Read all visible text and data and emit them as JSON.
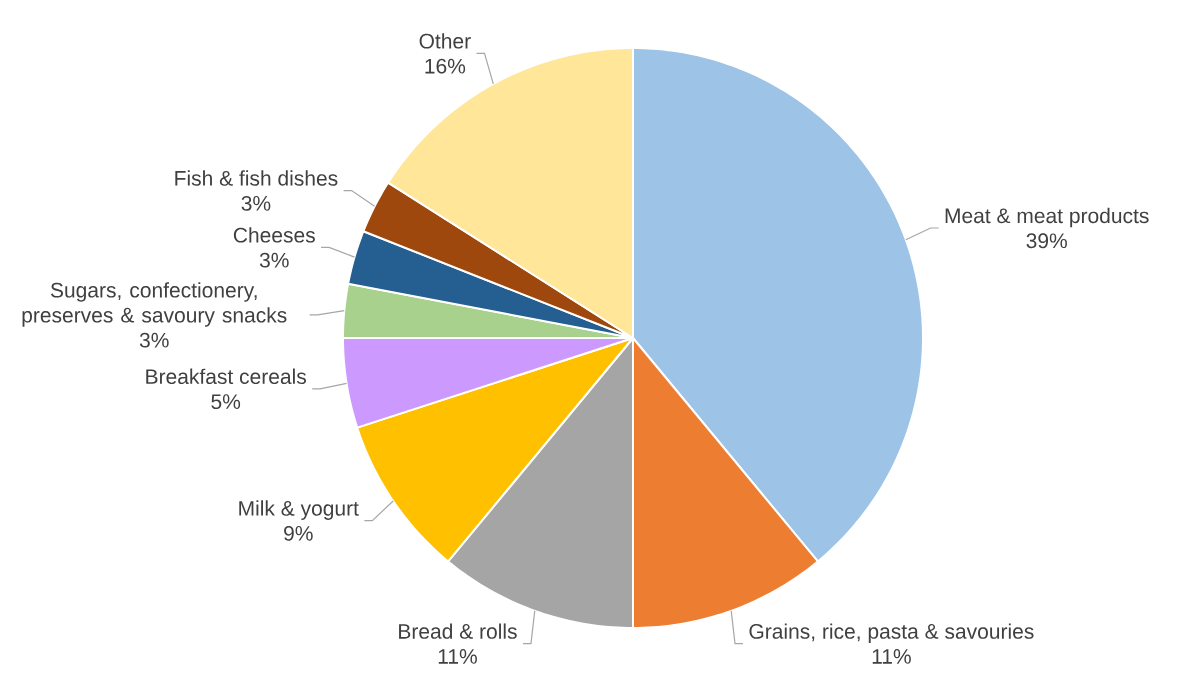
{
  "chart_data": {
    "type": "pie",
    "categories": [
      "Meat & meat products",
      "Grains, rice, pasta & savouries",
      "Bread & rolls",
      "Milk & yogurt",
      "Breakfast cereals",
      "Sugars, confectionery, preserves & savoury snacks",
      "Cheeses",
      "Fish & fish dishes",
      "Other"
    ],
    "values": [
      39,
      11,
      11,
      9,
      5,
      3,
      3,
      3,
      16
    ],
    "value_labels": [
      "39%",
      "11%",
      "11%",
      "9%",
      "5%",
      "3%",
      "3%",
      "3%",
      "16%"
    ],
    "colors": [
      "#9dc3e6",
      "#ed7d31",
      "#a5a5a5",
      "#ffc000",
      "#cc99ff",
      "#a9d18e",
      "#255e91",
      "#9e480e",
      "#ffe699"
    ]
  }
}
